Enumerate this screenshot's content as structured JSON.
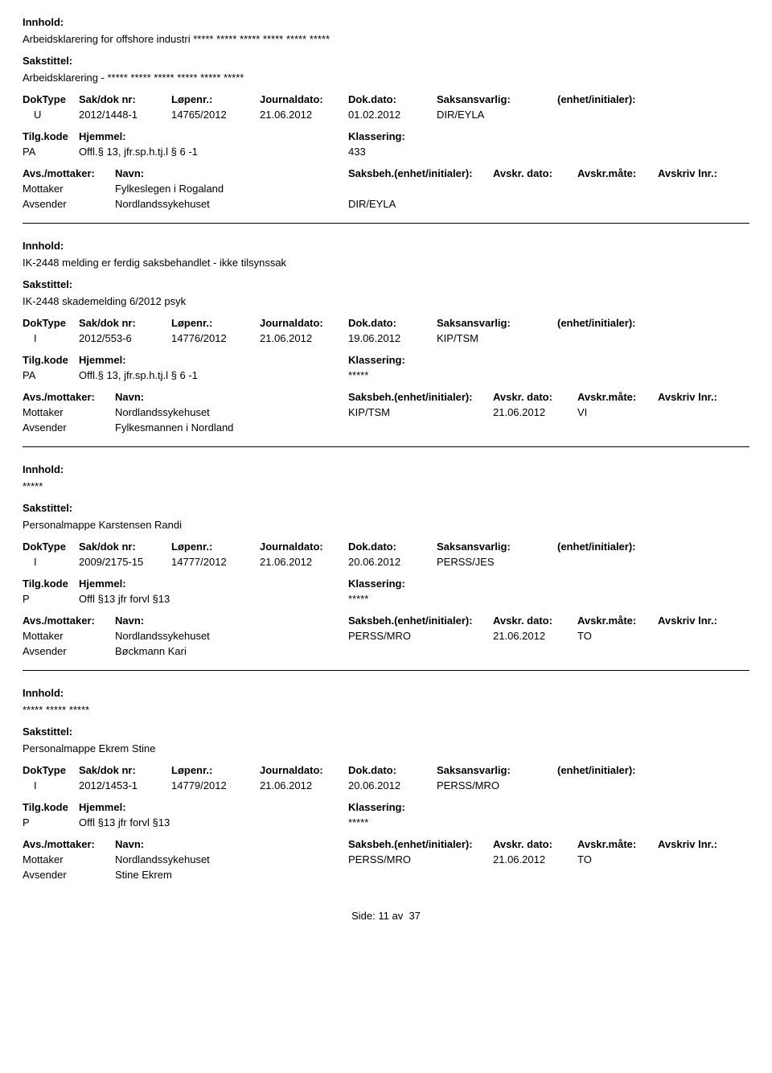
{
  "labels": {
    "innhold": "Innhold:",
    "sakstittel": "Sakstittel:",
    "doktype": "DokType",
    "saknr": "Sak/dok nr:",
    "lopenr": "Løpenr.:",
    "jdato": "Journaldato:",
    "ddato": "Dok.dato:",
    "saksansvarlig": "Saksansvarlig:",
    "enhet": "(enhet/initialer):",
    "tilgkode": "Tilg.kode",
    "hjemmel": "Hjemmel:",
    "klassering": "Klassering:",
    "avsmottaker": "Avs./mottaker:",
    "navn": "Navn:",
    "saksbeh": "Saksbeh.(enhet/initialer):",
    "avskrdato": "Avskr. dato:",
    "avskrmate": "Avskr.måte:",
    "avskrivlnr": "Avskriv lnr.:",
    "mottaker": "Mottaker",
    "avsender": "Avsender"
  },
  "records": [
    {
      "innhold": "Arbeidsklarering for offshore industri ***** ***** ***** ***** ***** *****",
      "sakstittel": "Arbeidsklarering - ***** ***** ***** ***** ***** *****",
      "doktype": "U",
      "saknr": "2012/1448-1",
      "lopenr": "14765/2012",
      "jdato": "21.06.2012",
      "ddato": "01.02.2012",
      "saksansvarlig": "DIR/EYLA",
      "tilgkode": "PA",
      "hjemmel": "Offl.§ 13, jfr.sp.h.tj.l § 6 -1",
      "klassering": "433",
      "parties": [
        {
          "role": "Mottaker",
          "navn": "Fylkeslegen i Rogaland",
          "saksbeh": "",
          "avskrdato": "",
          "avskrmate": ""
        },
        {
          "role": "Avsender",
          "navn": "Nordlandssykehuset",
          "saksbeh": "DIR/EYLA",
          "avskrdato": "",
          "avskrmate": ""
        }
      ]
    },
    {
      "innhold": "IK-2448 melding er ferdig saksbehandlet - ikke tilsynssak",
      "sakstittel": "IK-2448 skademelding 6/2012 psyk",
      "doktype": "I",
      "saknr": "2012/553-6",
      "lopenr": "14776/2012",
      "jdato": "21.06.2012",
      "ddato": "19.06.2012",
      "saksansvarlig": "KIP/TSM",
      "tilgkode": "PA",
      "hjemmel": "Offl.§ 13, jfr.sp.h.tj.l § 6 -1",
      "klassering": "*****",
      "parties": [
        {
          "role": "Mottaker",
          "navn": "Nordlandssykehuset",
          "saksbeh": "KIP/TSM",
          "avskrdato": "21.06.2012",
          "avskrmate": "VI"
        },
        {
          "role": "Avsender",
          "navn": "Fylkesmannen i Nordland",
          "saksbeh": "",
          "avskrdato": "",
          "avskrmate": ""
        }
      ]
    },
    {
      "innhold": "*****",
      "sakstittel": "Personalmappe Karstensen Randi",
      "doktype": "I",
      "saknr": "2009/2175-15",
      "lopenr": "14777/2012",
      "jdato": "21.06.2012",
      "ddato": "20.06.2012",
      "saksansvarlig": "PERSS/JES",
      "tilgkode": "P",
      "hjemmel": "Offl §13 jfr forvl §13",
      "klassering": "*****",
      "parties": [
        {
          "role": "Mottaker",
          "navn": "Nordlandssykehuset",
          "saksbeh": "PERSS/MRO",
          "avskrdato": "21.06.2012",
          "avskrmate": "TO"
        },
        {
          "role": "Avsender",
          "navn": "Bøckmann Kari",
          "saksbeh": "",
          "avskrdato": "",
          "avskrmate": ""
        }
      ]
    },
    {
      "innhold": "***** ***** *****",
      "sakstittel": "Personalmappe Ekrem Stine",
      "doktype": "I",
      "saknr": "2012/1453-1",
      "lopenr": "14779/2012",
      "jdato": "21.06.2012",
      "ddato": "20.06.2012",
      "saksansvarlig": "PERSS/MRO",
      "tilgkode": "P",
      "hjemmel": "Offl §13 jfr forvl §13",
      "klassering": "*****",
      "parties": [
        {
          "role": "Mottaker",
          "navn": "Nordlandssykehuset",
          "saksbeh": "PERSS/MRO",
          "avskrdato": "21.06.2012",
          "avskrmate": "TO"
        },
        {
          "role": "Avsender",
          "navn": "Stine Ekrem",
          "saksbeh": "",
          "avskrdato": "",
          "avskrmate": ""
        }
      ]
    }
  ],
  "footer": {
    "side_label": "Side:",
    "page": "11",
    "av": "av",
    "total": "37"
  }
}
